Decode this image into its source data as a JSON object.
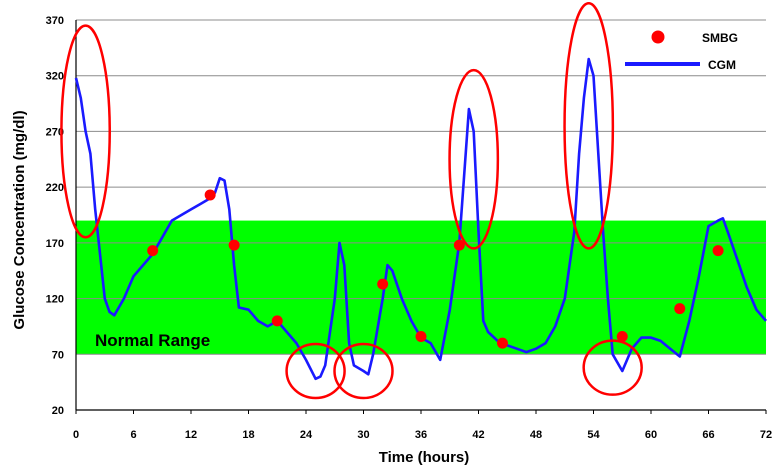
{
  "chart_data": {
    "type": "line",
    "title": "",
    "xlabel": "Time (hours)",
    "ylabel": "Glucose Concentration  (mg/dl)",
    "xlim": [
      0,
      72
    ],
    "ylim": [
      20,
      370
    ],
    "xticks": [
      0,
      6,
      12,
      18,
      24,
      30,
      36,
      42,
      48,
      54,
      60,
      66,
      72
    ],
    "yticks": [
      20,
      70,
      120,
      170,
      220,
      270,
      320,
      370
    ],
    "grid": "horizontal",
    "legend_position": "top-right",
    "normal_range": {
      "label": "Normal Range",
      "low": 70,
      "high": 190
    },
    "colors": {
      "cgm": "#1a1aff",
      "smbg": "#ff0000",
      "normal_range": "#00ff00",
      "highlight": "#ff0000"
    },
    "series": [
      {
        "name": "CGM",
        "kind": "line",
        "x": [
          0,
          0.5,
          1,
          1.5,
          2,
          2.5,
          3,
          3.5,
          4,
          5,
          6,
          7,
          8,
          9,
          10,
          11,
          12,
          13,
          14,
          14.5,
          15,
          15.5,
          16,
          16.5,
          17,
          18,
          19,
          20,
          21,
          22,
          23,
          24,
          25,
          25.5,
          26,
          27,
          27.5,
          28,
          28.5,
          29,
          30,
          30.5,
          31,
          32,
          32.5,
          33,
          34,
          35,
          36,
          37,
          38,
          39,
          40,
          40.5,
          41,
          41.5,
          42,
          42.5,
          43,
          44,
          45,
          46,
          47,
          48,
          49,
          50,
          51,
          52,
          52.5,
          53,
          53.5,
          54,
          54.5,
          55,
          55.5,
          56,
          57,
          58,
          59,
          60,
          61,
          62,
          63,
          64,
          65,
          66,
          67,
          67.5,
          68,
          69,
          70,
          71,
          72
        ],
        "y": [
          318,
          300,
          270,
          250,
          200,
          160,
          120,
          108,
          105,
          120,
          140,
          150,
          160,
          175,
          190,
          195,
          200,
          205,
          210,
          215,
          228,
          226,
          200,
          150,
          112,
          110,
          100,
          95,
          100,
          90,
          80,
          65,
          48,
          50,
          60,
          120,
          170,
          150,
          80,
          60,
          55,
          52,
          70,
          120,
          150,
          145,
          120,
          100,
          85,
          80,
          65,
          110,
          170,
          230,
          290,
          270,
          180,
          100,
          90,
          82,
          78,
          75,
          72,
          75,
          80,
          95,
          120,
          180,
          250,
          300,
          335,
          320,
          250,
          180,
          120,
          70,
          55,
          75,
          85,
          85,
          82,
          75,
          68,
          100,
          140,
          185,
          190,
          192,
          180,
          155,
          130,
          110,
          100
        ],
        "color": "#1a1aff"
      },
      {
        "name": "SMBG",
        "kind": "scatter",
        "x": [
          8,
          14,
          16.5,
          21,
          32,
          36,
          40,
          44.5,
          57,
          63,
          67
        ],
        "y": [
          163,
          213,
          168,
          100,
          133,
          86,
          168,
          80,
          86,
          111,
          163
        ],
        "color": "#ff0000"
      }
    ],
    "highlights": [
      {
        "shape": "ellipse",
        "cx": 1,
        "cy": 270,
        "rx": 1.2,
        "ry": 95
      },
      {
        "shape": "ellipse",
        "cx": 41.5,
        "cy": 245,
        "rx": 1.2,
        "ry": 80
      },
      {
        "shape": "ellipse",
        "cx": 53.5,
        "cy": 275,
        "rx": 1.2,
        "ry": 110
      },
      {
        "shape": "circle",
        "cx": 25,
        "cy": 55
      },
      {
        "shape": "circle",
        "cx": 30,
        "cy": 55
      },
      {
        "shape": "circle",
        "cx": 56,
        "cy": 58
      }
    ]
  }
}
